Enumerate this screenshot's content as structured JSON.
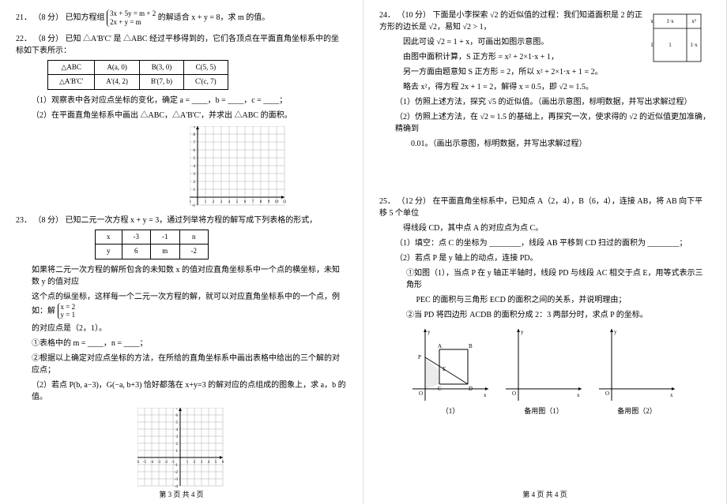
{
  "page_left": {
    "q21": {
      "num": "21．",
      "pts": "（8 分）",
      "text_a": "已知方程组",
      "sys_line1": "3x + 5y = m + 2",
      "sys_line2": "2x + y = m",
      "text_b": "的解适合 x + y = 8，求 m 的值。"
    },
    "q22": {
      "num": "22．",
      "pts": "（8 分）",
      "text": "已知 △A'B'C' 是 △ABC 经过平移得到的，它们各顶点在平面直角坐标系中的坐标如下表所示：",
      "table": {
        "r1": [
          "△ABC",
          "A(a, 0)",
          "B(3, 0)",
          "C(5, 5)"
        ],
        "r2": [
          "△A'B'C'",
          "A'(4, 2)",
          "B'(7, b)",
          "C'(c, 7)"
        ]
      },
      "sub1": "（1）观察表中各对应点坐标的变化，确定 a = ____，b = ____，c = ____；",
      "sub2": "（2）在平面直角坐标系中画出 △ABC，△A'B'C'，并求出 △ABC 的面积。",
      "grid": {
        "xmin": -1,
        "xmax": 11,
        "ymin": -1,
        "ymax": 9,
        "cell": 10
      }
    },
    "q23": {
      "num": "23．",
      "pts": "（8 分）",
      "text": "已知二元一次方程 x + y = 3，通过列举将方程的解写成下列表格的形式，",
      "table": {
        "header": [
          "x",
          "-3",
          "-1",
          "n"
        ],
        "row": [
          "y",
          "6",
          "m",
          "-2"
        ]
      },
      "para1": "如果将二元一次方程的解所包含的未知数 x 的值对应直角坐标系中一个点的横坐标，未知数 y 的值对应",
      "para2_a": "这个点的纵坐标，这样每一个二元一次方程的解，就可以对应直角坐标系中的一个点，例如：解",
      "para2_sys1": "x = 2",
      "para2_sys2": "y = 1",
      "para3": "的对应点是（2，1）。",
      "sub1": "①表格中的 m = ____，n = ____；",
      "sub2": "②根据以上确定对应点坐标的方法，在所给的直角坐标系中画出表格中给出的三个解的对应点；",
      "sub3": "（2）若点 P(b, a−3)，G(−a, b+3) 恰好都落在 x+y=3 的解对应的点组成的图象上，求 a，b 的值。",
      "grid": {
        "xmin": -6,
        "xmax": 6,
        "ymin": -4,
        "ymax": 7,
        "cell": 9
      }
    },
    "footer": "第 3 页  共 4 页"
  },
  "page_right": {
    "q24": {
      "num": "24．",
      "pts": "（10 分）",
      "line1": "下面是小李探索 √2 的近似值的过程：我们知道面积是 2 的正方形的边长是 √2，易知 √2 > 1，",
      "line2": "因此可设 √2 = 1 + x，可画出如图示意图。",
      "line3": "由图中面积计算，S 正方形 = x² + 2×1·x + 1，",
      "line4": "另一方面由题意知 S 正方形 = 2，所以 x² + 2×1·x + 1 = 2。",
      "line5": "略去 x²，得方程 2x + 1 = 2，解得 x = 0.5，即 √2 ≈ 1.5。",
      "sub1": "（1）仿照上述方法，探究 √5 的近似值。（画出示意图，标明数据，并写出求解过程）",
      "sub2": "（2）仿照上述方法，在 √2 ≈ 1.5 的基础上，再探究一次，使求得的 √2 的近似值更加准确，精确到",
      "sub2b": "　　0.01。（画出示意图，标明数据，并写出求解过程）",
      "diagram": {
        "outer": 60,
        "inner_split": 42,
        "labels": {
          "x": "x",
          "one": "1",
          "xsq": "x²",
          "onex": "1·x"
        }
      }
    },
    "q25": {
      "num": "25．",
      "pts": "（12 分）",
      "line1": "在平面直角坐标系中，已知点 A（2，4），B（6，4），连接 AB，将 AB 向下平移 5 个单位",
      "line2": "得线段 CD，其中点 A 的对应点为点 C。",
      "sub1": "（1）填空：点 C 的坐标为 ________，线段 AB 平移到 CD 扫过的面积为 ________；",
      "sub2": "（2）若点 P 是 y 轴上的动点，连接 PD。",
      "sub2a": "①如图（1），当点 P 在 y 轴正半轴时，线段 PD 与线段 AC 相交于点 E，用等式表示三角形",
      "sub2a2": "　 PEC 的面积与三角形 ECD 的面积之间的关系，并说明理由；",
      "sub2b": "②当 PD 将四边形 ACDB 的面积分成 2：3 两部分时，求点 P 的坐标。",
      "fig_labels": {
        "fig1": "（1）",
        "spare1": "备用图（1）",
        "spare2": "备用图（2）"
      },
      "axis": {
        "y": "y",
        "x": "x",
        "O": "O",
        "A": "A",
        "B": "B",
        "C": "C",
        "D": "D",
        "E": "E",
        "P": "P"
      }
    },
    "footer": "第 4 页  共 4 页"
  },
  "colors": {
    "text": "#000000",
    "grid": "#000000",
    "grid_light": "#888888",
    "bg": "#ffffff"
  }
}
